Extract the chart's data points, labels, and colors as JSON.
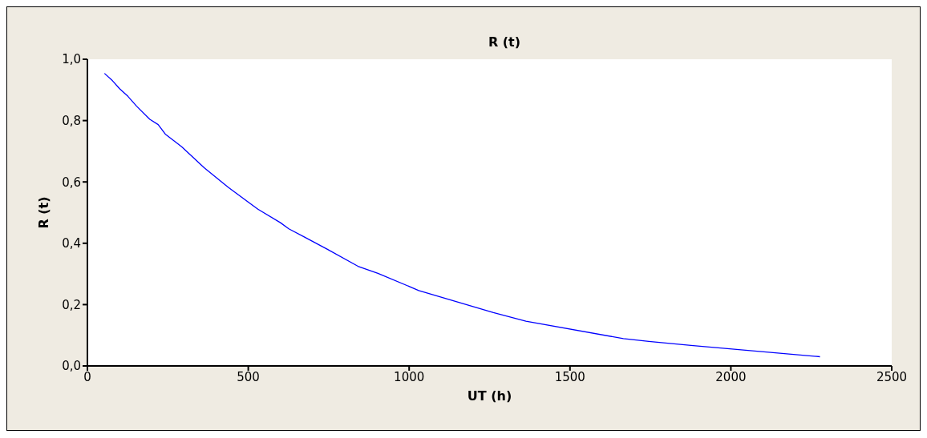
{
  "chart_data": {
    "type": "line",
    "title": "R (t)",
    "xlabel": "UT (h)",
    "ylabel": "R (t)",
    "x": [
      53,
      78,
      100,
      126,
      153,
      194,
      220,
      242,
      293,
      363,
      438,
      530,
      600,
      626,
      675,
      745,
      841,
      903,
      1030,
      1262,
      1363,
      1666,
      1745,
      1876,
      2277
    ],
    "series": [
      {
        "color": "#0000ff",
        "values": [
          0.954,
          0.93,
          0.904,
          0.879,
          0.847,
          0.804,
          0.787,
          0.756,
          0.715,
          0.646,
          0.582,
          0.511,
          0.467,
          0.447,
          0.42,
          0.381,
          0.325,
          0.302,
          0.246,
          0.174,
          0.146,
          0.089,
          0.08,
          0.067,
          0.03
        ]
      }
    ],
    "xlim": [
      0,
      2500
    ],
    "xticks": [
      0,
      500,
      1000,
      1500,
      2000,
      2500
    ],
    "ylim": [
      0,
      1
    ],
    "yticks": [
      {
        "value": 0,
        "label": "0,0"
      },
      {
        "value": 0.2,
        "label": "0,2"
      },
      {
        "value": 0.4,
        "label": "0,4"
      },
      {
        "value": 0.6,
        "label": "0,6"
      },
      {
        "value": 0.8,
        "label": "0,8"
      },
      {
        "value": 1,
        "label": "1,0"
      }
    ],
    "grid": false,
    "legend": false,
    "marker": "none",
    "line_style": "solid"
  }
}
